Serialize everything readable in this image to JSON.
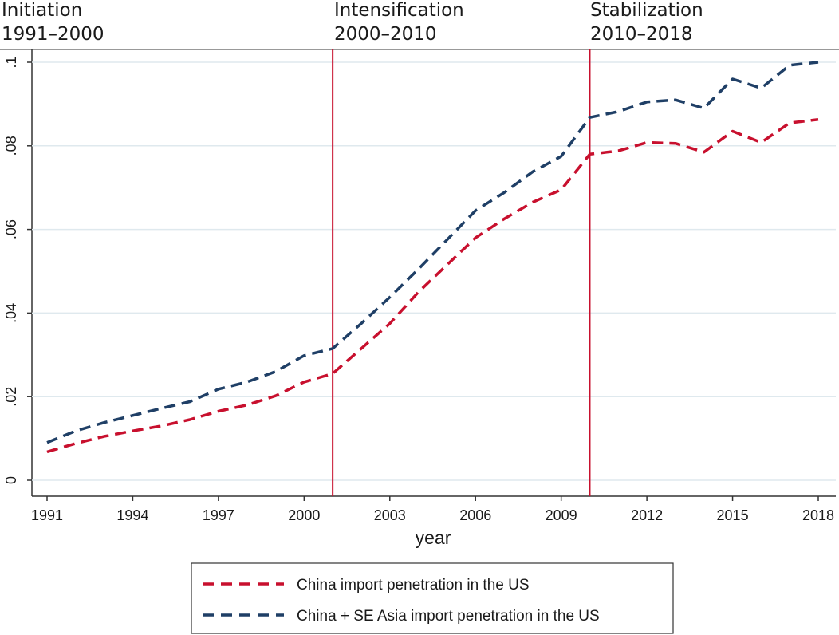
{
  "phases": [
    {
      "name": "Initiation",
      "years": "1991–2000",
      "divider_year": null
    },
    {
      "name": "Intensification",
      "years": "2000–2010",
      "divider_year": 2001
    },
    {
      "name": "Stabilization",
      "years": "2010–2018",
      "divider_year": 2010
    }
  ],
  "chart_data": {
    "type": "line",
    "title": "",
    "xlabel": "year",
    "ylabel": "",
    "xlim": [
      1991,
      2018
    ],
    "ylim": [
      0,
      0.1
    ],
    "x_ticks": [
      1991,
      1994,
      1997,
      2000,
      2003,
      2006,
      2009,
      2012,
      2015,
      2018
    ],
    "x_tick_labels": [
      "1991",
      "1994",
      "1997",
      "2000",
      "2003",
      "2006",
      "2009",
      "2012",
      "2015",
      "2018"
    ],
    "y_ticks": [
      0,
      0.02,
      0.04,
      0.06,
      0.08,
      0.1
    ],
    "y_tick_labels": [
      "0",
      ".02",
      ".04",
      ".06",
      ".08",
      ".1"
    ],
    "grid": "horizontal",
    "legend_position": "bottom",
    "x": [
      1991,
      1992,
      1993,
      1994,
      1995,
      1996,
      1997,
      1998,
      1999,
      2000,
      2001,
      2002,
      2003,
      2004,
      2005,
      2006,
      2007,
      2008,
      2009,
      2010,
      2011,
      2012,
      2013,
      2014,
      2015,
      2016,
      2017,
      2018
    ],
    "series": [
      {
        "name": "China import penetration in the US",
        "color": "#c8102e",
        "style": "dashed",
        "values": [
          0.0068,
          0.0088,
          0.0105,
          0.0118,
          0.013,
          0.0145,
          0.0165,
          0.018,
          0.0202,
          0.0235,
          0.0255,
          0.0315,
          0.0375,
          0.045,
          0.0515,
          0.058,
          0.0625,
          0.0665,
          0.0695,
          0.078,
          0.0788,
          0.0808,
          0.0806,
          0.0785,
          0.0835,
          0.0808,
          0.0855,
          0.0863
        ]
      },
      {
        "name": "China + SE Asia import penetration in the US",
        "color": "#1f3f66",
        "style": "dashed",
        "values": [
          0.009,
          0.0118,
          0.0138,
          0.0155,
          0.0172,
          0.0188,
          0.0218,
          0.0235,
          0.026,
          0.0298,
          0.0315,
          0.0375,
          0.0438,
          0.0505,
          0.0575,
          0.0645,
          0.0688,
          0.0738,
          0.0775,
          0.0868,
          0.0882,
          0.0905,
          0.091,
          0.089,
          0.096,
          0.0938,
          0.0993,
          0.1
        ]
      }
    ]
  }
}
